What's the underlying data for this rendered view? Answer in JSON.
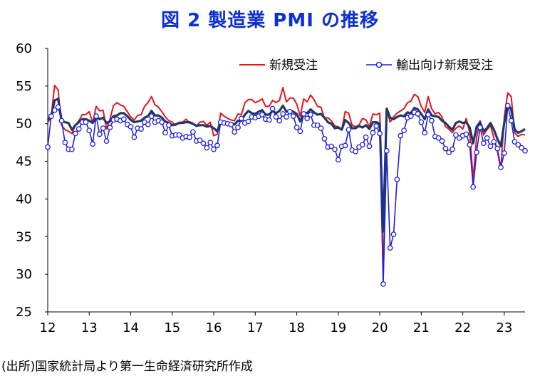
{
  "title": "図 2  製造業 PMI の推移",
  "source": "(出所)国家統計局より第一生命経済研究所作成",
  "colors": {
    "headline": "#1f3864",
    "new_orders": "#e8141e",
    "export_orders": "#1f1fe0",
    "marker_fill": "#ffffff",
    "title": "#0c2fd9"
  },
  "chart_data": {
    "type": "line",
    "title": "図 2  製造業 PMI の推移",
    "xlabel": "",
    "ylabel": "",
    "ylim": [
      25,
      60
    ],
    "yticks": [
      25,
      30,
      35,
      40,
      45,
      50,
      55,
      60
    ],
    "xlim": [
      2012,
      2023.5
    ],
    "xticks": [
      2012,
      2013,
      2014,
      2015,
      2016,
      2017,
      2018,
      2019,
      2020,
      2021,
      2022,
      2023
    ],
    "xtick_labels": [
      "12",
      "13",
      "14",
      "15",
      "16",
      "17",
      "18",
      "19",
      "20",
      "21",
      "22",
      "23"
    ],
    "legend_position": "top-right",
    "grid": false,
    "x_start": "2012-01",
    "frequency": "monthly",
    "series": [
      {
        "name": "",
        "role": "headline",
        "values": [
          50.5,
          51.0,
          53.1,
          53.3,
          50.4,
          50.2,
          50.1,
          49.2,
          49.8,
          50.2,
          50.6,
          50.6,
          50.4,
          50.1,
          50.9,
          50.6,
          50.8,
          50.1,
          50.3,
          51.0,
          51.1,
          51.4,
          51.4,
          51.0,
          50.5,
          50.2,
          50.3,
          50.4,
          50.8,
          51.0,
          51.7,
          51.1,
          51.1,
          50.8,
          50.3,
          50.1,
          49.8,
          49.9,
          50.1,
          50.1,
          50.2,
          50.2,
          50.0,
          49.7,
          49.8,
          49.8,
          49.6,
          49.7,
          49.4,
          49.0,
          50.2,
          50.1,
          50.1,
          50.0,
          49.9,
          50.4,
          50.4,
          51.2,
          51.7,
          51.4,
          51.3,
          51.6,
          51.8,
          51.2,
          51.2,
          51.7,
          51.4,
          51.7,
          52.4,
          51.6,
          51.8,
          51.6,
          51.3,
          50.3,
          51.5,
          51.4,
          51.9,
          51.5,
          51.2,
          51.3,
          50.8,
          50.2,
          50.0,
          49.4,
          49.5,
          49.2,
          50.5,
          50.1,
          49.4,
          49.4,
          49.7,
          49.5,
          49.8,
          49.3,
          50.2,
          50.2,
          50.0,
          35.7,
          52.0,
          50.8,
          50.6,
          50.9,
          51.1,
          51.0,
          51.5,
          51.4,
          52.1,
          51.9,
          51.3,
          50.6,
          51.9,
          51.1,
          51.0,
          50.9,
          50.4,
          50.1,
          49.6,
          49.2,
          50.1,
          50.3,
          50.1,
          50.2,
          49.5,
          47.4,
          49.6,
          50.2,
          49.0,
          49.4,
          50.1,
          49.2,
          48.0,
          47.0,
          50.1,
          52.6,
          51.9,
          49.2,
          48.8,
          49.0,
          49.3
        ]
      },
      {
        "name": "新規受注",
        "values": [
          50.1,
          51.0,
          55.1,
          54.5,
          49.8,
          49.2,
          49.0,
          48.7,
          49.8,
          50.4,
          51.2,
          51.2,
          51.6,
          50.1,
          52.3,
          51.7,
          51.8,
          49.3,
          50.6,
          52.4,
          52.8,
          52.5,
          52.3,
          51.6,
          50.9,
          50.5,
          51.1,
          51.2,
          52.3,
          52.8,
          53.6,
          52.5,
          52.2,
          51.6,
          50.9,
          50.4,
          50.2,
          49.8,
          50.2,
          50.2,
          50.6,
          50.1,
          49.9,
          49.7,
          50.2,
          50.3,
          49.8,
          50.2,
          48.4,
          48.6,
          51.4,
          51.0,
          50.7,
          50.5,
          50.4,
          51.3,
          51.2,
          52.8,
          53.2,
          53.2,
          52.8,
          53.0,
          53.3,
          52.3,
          52.3,
          53.1,
          52.8,
          53.1,
          54.8,
          52.9,
          53.4,
          53.4,
          52.6,
          51.0,
          53.3,
          52.9,
          53.8,
          53.2,
          52.3,
          52.2,
          50.7,
          50.8,
          50.4,
          49.7,
          49.6,
          49.2,
          51.6,
          51.4,
          49.8,
          49.6,
          49.8,
          50.7,
          50.5,
          49.6,
          51.3,
          51.2,
          51.4,
          29.3,
          52.0,
          50.2,
          50.9,
          51.4,
          51.7,
          52.0,
          52.8,
          53.0,
          53.9,
          53.6,
          52.3,
          51.5,
          53.6,
          52.0,
          51.3,
          51.5,
          50.9,
          49.6,
          49.3,
          48.8,
          49.4,
          49.7,
          49.3,
          50.7,
          48.8,
          42.6,
          48.2,
          50.4,
          48.5,
          49.2,
          49.8,
          48.1,
          46.4,
          43.9,
          50.9,
          54.1,
          53.6,
          48.8,
          48.3,
          48.6,
          48.5
        ]
      },
      {
        "name": "輸出向け新規受注",
        "values": [
          46.9,
          51.0,
          51.8,
          52.2,
          50.4,
          47.5,
          46.6,
          46.6,
          48.7,
          49.3,
          50.2,
          50.2,
          49.1,
          47.3,
          51.0,
          48.6,
          49.4,
          47.7,
          49.5,
          50.5,
          50.6,
          50.4,
          50.6,
          49.9,
          49.6,
          48.2,
          49.4,
          49.3,
          50.2,
          49.9,
          51.0,
          50.2,
          50.4,
          50.2,
          48.8,
          49.8,
          48.4,
          48.5,
          48.5,
          48.1,
          48.3,
          48.2,
          48.9,
          47.7,
          47.8,
          47.4,
          46.8,
          47.5,
          46.6,
          47.1,
          50.2,
          50.1,
          50.0,
          49.9,
          48.9,
          49.5,
          50.7,
          50.1,
          50.3,
          50.9,
          50.8,
          51.0,
          51.2,
          50.6,
          50.5,
          52.0,
          50.9,
          50.4,
          51.3,
          50.9,
          51.6,
          51.0,
          49.5,
          49.0,
          51.3,
          50.7,
          51.2,
          49.8,
          49.8,
          49.4,
          48.0,
          46.9,
          47.0,
          46.6,
          45.2,
          47.0,
          47.1,
          49.2,
          46.5,
          46.3,
          46.9,
          47.2,
          48.2,
          47.0,
          48.8,
          49.7,
          48.7,
          28.7,
          46.4,
          33.5,
          35.3,
          42.6,
          48.4,
          49.1,
          50.8,
          51.0,
          51.5,
          51.3,
          50.2,
          48.8,
          51.2,
          50.4,
          48.3,
          48.1,
          47.7,
          46.7,
          46.2,
          46.6,
          48.5,
          48.1,
          48.4,
          48.6,
          47.2,
          41.6,
          46.2,
          49.5,
          47.4,
          48.1,
          47.0,
          47.6,
          46.7,
          44.2,
          46.1,
          52.4,
          50.4,
          47.6,
          47.2,
          46.8,
          46.4
        ]
      }
    ]
  }
}
